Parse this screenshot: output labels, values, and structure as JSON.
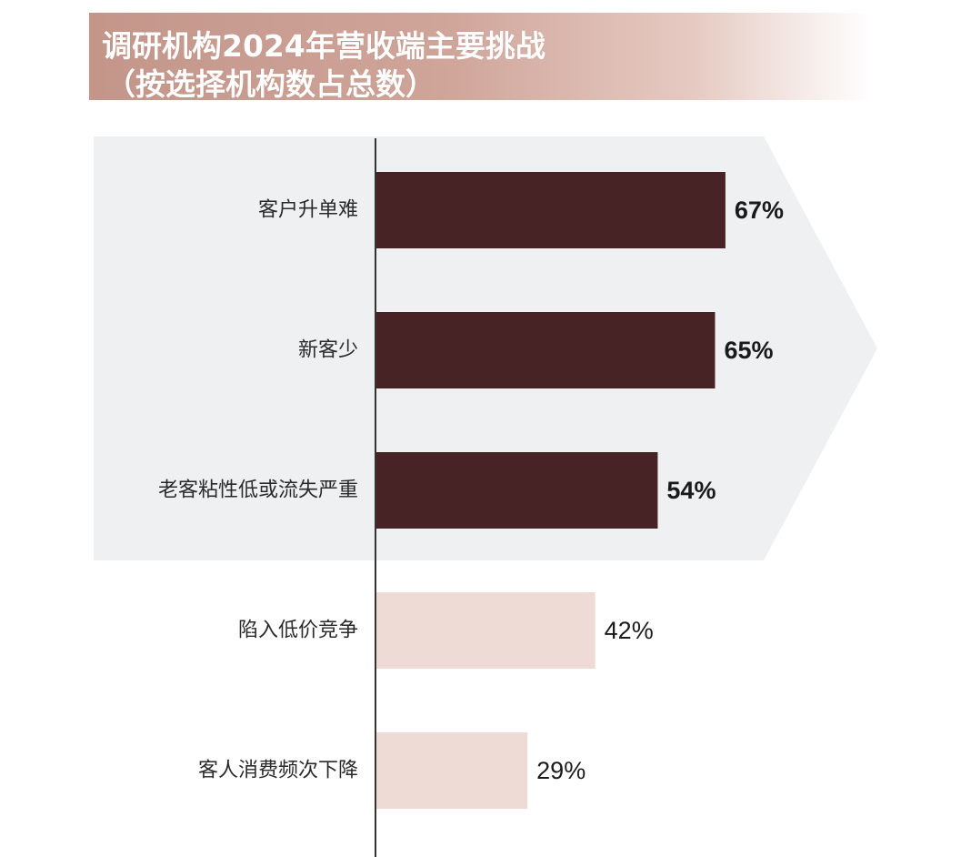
{
  "chart_data": {
    "type": "bar",
    "orientation": "horizontal",
    "title": "调研机构2024年营收端主要挑战",
    "subtitle": "（按选择机构数占总数）",
    "categories": [
      "客户升单难",
      "新客少",
      "老客粘性低或流失严重",
      "陷入低价竞争",
      "客人消费频次下降"
    ],
    "values": [
      67,
      65,
      54,
      42,
      29
    ],
    "value_labels": [
      "67%",
      "65%",
      "54%",
      "42%",
      "29%"
    ],
    "unit": "%",
    "xlim": [
      0,
      100
    ],
    "highlighted_count": 3,
    "colors": {
      "highlight_bar": "#482325",
      "normal_bar": "#eedbd6",
      "highlight_panel": "#eff0f1",
      "axis": "#333333"
    },
    "grid": false,
    "legend": "none"
  }
}
